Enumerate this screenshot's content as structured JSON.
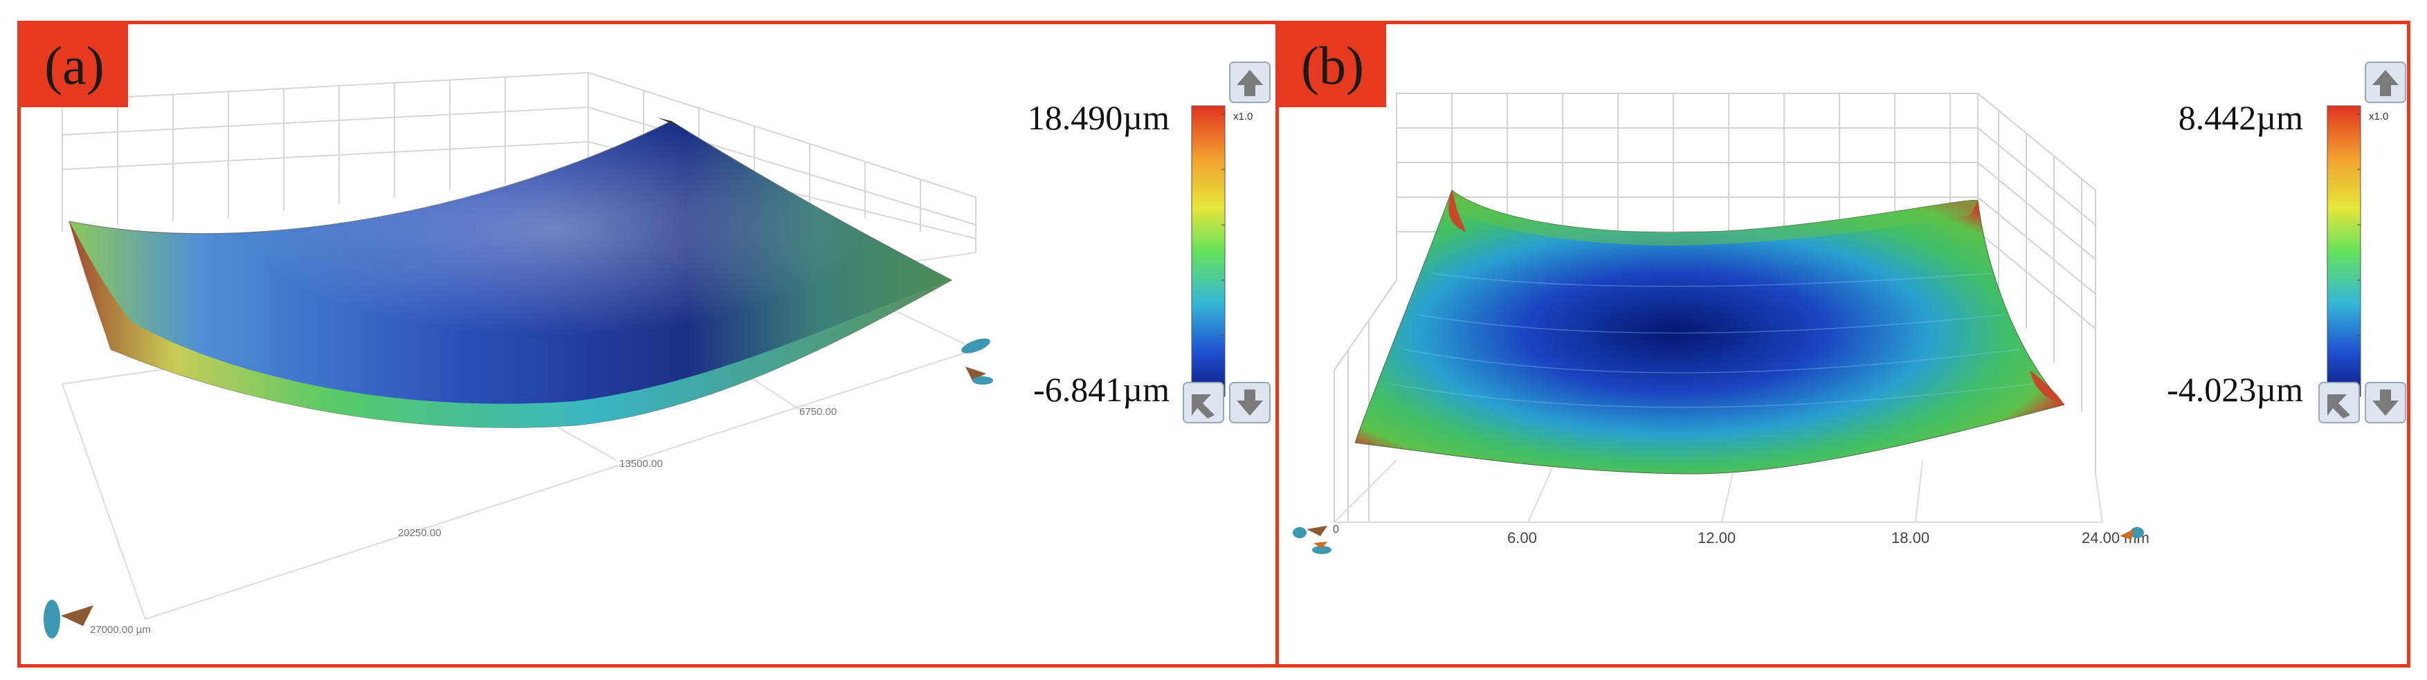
{
  "panels": [
    {
      "tag": "(a)",
      "scale_max": "18.490µm",
      "scale_min": "-6.841µm",
      "zoom": "x1.0",
      "axis_ticks": [
        "27000.00 µm",
        "20250.00",
        "13500.00",
        "6750.00"
      ]
    },
    {
      "tag": "(b)",
      "scale_max": "8.442µm",
      "scale_min": "-4.023µm",
      "zoom": "x1.0",
      "axis_ticks": [
        "6.00",
        "12.00",
        "18.00",
        "24.00 mm"
      ],
      "axis_origin": "0"
    }
  ],
  "colors": {
    "frame": "#e53a1f",
    "colormap": [
      "#0a1a7a",
      "#1f4fd0",
      "#35b7d8",
      "#66e25a",
      "#f2e43a",
      "#e0321e"
    ]
  },
  "icons": [
    "arrow-up-icon",
    "arrow-down-icon",
    "reset-view-icon",
    "axis-orientation-icon"
  ]
}
